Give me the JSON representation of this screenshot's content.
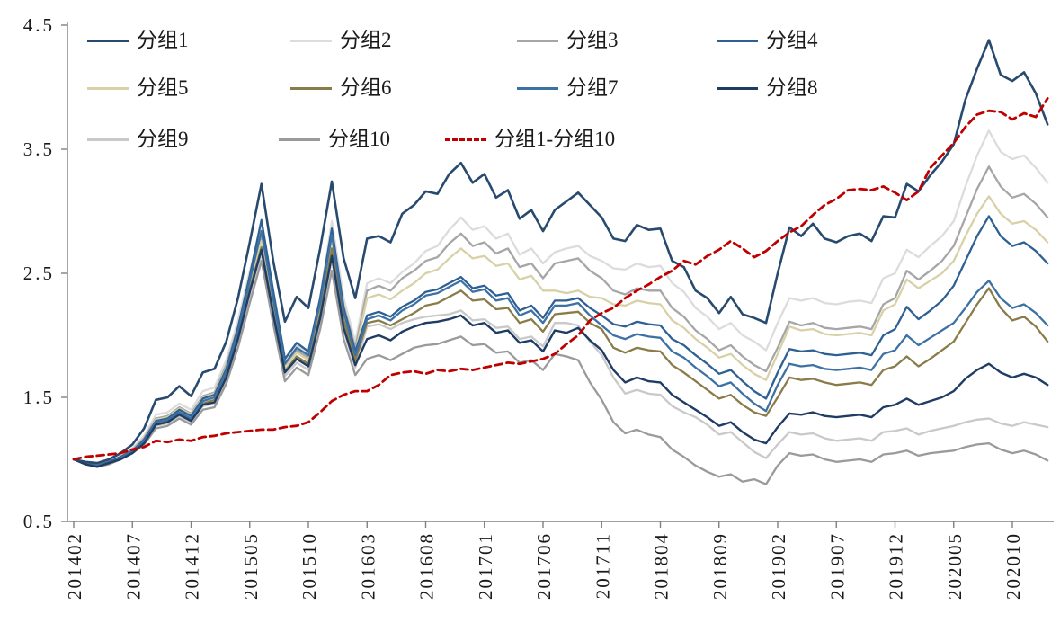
{
  "chart_data": {
    "type": "line",
    "title": "",
    "grid": false,
    "legend_position": "top-left-inside",
    "x_axis": {
      "start_label": "201402",
      "tick_labels": [
        "201402",
        "201407",
        "201412",
        "201505",
        "201510",
        "201603",
        "201608",
        "201701",
        "201706",
        "201711",
        "201804",
        "201809",
        "201902",
        "201907",
        "201912",
        "202005",
        "202010"
      ],
      "tick_months": [
        0,
        5,
        10,
        15,
        20,
        25,
        30,
        35,
        40,
        45,
        50,
        55,
        60,
        65,
        70,
        75,
        80
      ],
      "label_rotation_deg": -90
    },
    "y_axis": {
      "min": 0.5,
      "max": 4.5,
      "tick_labels": [
        "0.5",
        "1.5",
        "2.5",
        "3.5",
        "4.5"
      ],
      "tick_values": [
        0.5,
        1.5,
        2.5,
        3.5,
        4.5
      ]
    },
    "n_points": 84,
    "axis_color": "#808080",
    "series": [
      {
        "name": "分组1",
        "color": "#274A6E",
        "dashed": false,
        "width": 2.6,
        "values": [
          1.0,
          0.98,
          0.97,
          1.0,
          1.05,
          1.12,
          1.25,
          1.48,
          1.5,
          1.59,
          1.51,
          1.7,
          1.73,
          1.95,
          2.3,
          2.75,
          3.22,
          2.6,
          2.11,
          2.31,
          2.22,
          2.7,
          3.24,
          2.62,
          2.3,
          2.78,
          2.8,
          2.75,
          2.98,
          3.05,
          3.16,
          3.14,
          3.3,
          3.39,
          3.23,
          3.3,
          3.11,
          3.17,
          2.94,
          3.01,
          2.84,
          3.01,
          3.08,
          3.15,
          3.05,
          2.95,
          2.78,
          2.76,
          2.89,
          2.85,
          2.86,
          2.6,
          2.55,
          2.36,
          2.3,
          2.18,
          2.31,
          2.17,
          2.14,
          2.1,
          2.5,
          2.87,
          2.8,
          2.9,
          2.78,
          2.75,
          2.8,
          2.82,
          2.76,
          2.96,
          2.95,
          3.22,
          3.16,
          3.29,
          3.4,
          3.54,
          3.9,
          4.15,
          4.38,
          4.1,
          4.05,
          4.12,
          3.95,
          3.7
        ]
      },
      {
        "name": "分组2",
        "color": "#DCDCDC",
        "dashed": false,
        "width": 2.3,
        "values": [
          1.0,
          0.98,
          0.96,
          0.99,
          1.03,
          1.09,
          1.19,
          1.36,
          1.38,
          1.45,
          1.4,
          1.55,
          1.58,
          1.8,
          2.12,
          2.52,
          2.88,
          2.32,
          1.79,
          1.92,
          1.86,
          2.3,
          2.92,
          2.3,
          1.95,
          2.42,
          2.46,
          2.42,
          2.51,
          2.58,
          2.68,
          2.72,
          2.85,
          2.95,
          2.85,
          2.88,
          2.78,
          2.82,
          2.65,
          2.7,
          2.58,
          2.67,
          2.7,
          2.72,
          2.64,
          2.6,
          2.54,
          2.53,
          2.58,
          2.55,
          2.56,
          2.42,
          2.35,
          2.22,
          2.15,
          2.05,
          2.1,
          2.0,
          1.95,
          1.88,
          2.1,
          2.3,
          2.28,
          2.3,
          2.26,
          2.25,
          2.27,
          2.28,
          2.26,
          2.46,
          2.5,
          2.69,
          2.63,
          2.72,
          2.8,
          2.92,
          3.2,
          3.45,
          3.65,
          3.48,
          3.42,
          3.45,
          3.35,
          3.23
        ]
      },
      {
        "name": "分组3",
        "color": "#A6A6A6",
        "dashed": false,
        "width": 2.3,
        "values": [
          1.0,
          0.97,
          0.96,
          0.98,
          1.02,
          1.08,
          1.17,
          1.33,
          1.35,
          1.42,
          1.37,
          1.51,
          1.54,
          1.76,
          2.07,
          2.46,
          2.8,
          2.26,
          1.76,
          1.88,
          1.82,
          2.24,
          2.83,
          2.24,
          1.9,
          2.36,
          2.4,
          2.36,
          2.46,
          2.52,
          2.6,
          2.63,
          2.74,
          2.82,
          2.72,
          2.75,
          2.66,
          2.7,
          2.55,
          2.58,
          2.46,
          2.58,
          2.6,
          2.62,
          2.52,
          2.46,
          2.36,
          2.33,
          2.38,
          2.36,
          2.36,
          2.22,
          2.15,
          2.04,
          1.97,
          1.88,
          1.92,
          1.83,
          1.76,
          1.71,
          1.9,
          2.11,
          2.08,
          2.1,
          2.06,
          2.05,
          2.06,
          2.07,
          2.05,
          2.25,
          2.3,
          2.52,
          2.45,
          2.52,
          2.6,
          2.72,
          2.95,
          3.18,
          3.36,
          3.2,
          3.11,
          3.14,
          3.06,
          2.95
        ]
      },
      {
        "name": "分组4",
        "color": "#2F6093",
        "dashed": false,
        "width": 2.3,
        "values": [
          1.0,
          0.97,
          0.95,
          0.98,
          1.02,
          1.07,
          1.16,
          1.31,
          1.33,
          1.4,
          1.35,
          1.49,
          1.52,
          1.73,
          2.06,
          2.48,
          2.93,
          2.36,
          1.81,
          1.94,
          1.87,
          2.3,
          2.86,
          2.22,
          1.87,
          2.16,
          2.19,
          2.15,
          2.23,
          2.28,
          2.35,
          2.37,
          2.42,
          2.47,
          2.38,
          2.4,
          2.32,
          2.34,
          2.2,
          2.24,
          2.14,
          2.28,
          2.28,
          2.3,
          2.22,
          2.16,
          2.09,
          2.07,
          2.11,
          2.09,
          2.08,
          1.97,
          1.92,
          1.84,
          1.77,
          1.69,
          1.72,
          1.63,
          1.55,
          1.49,
          1.7,
          1.89,
          1.87,
          1.88,
          1.85,
          1.84,
          1.85,
          1.86,
          1.84,
          2.0,
          2.05,
          2.23,
          2.13,
          2.2,
          2.28,
          2.4,
          2.6,
          2.8,
          2.96,
          2.8,
          2.72,
          2.75,
          2.68,
          2.58
        ]
      },
      {
        "name": "分组5",
        "color": "#D8D1A7",
        "dashed": false,
        "width": 2.3,
        "values": [
          1.0,
          0.97,
          0.95,
          0.98,
          1.02,
          1.08,
          1.16,
          1.32,
          1.34,
          1.41,
          1.36,
          1.5,
          1.53,
          1.74,
          2.05,
          2.43,
          2.76,
          2.23,
          1.74,
          1.86,
          1.8,
          2.21,
          2.77,
          2.18,
          1.86,
          2.3,
          2.33,
          2.29,
          2.36,
          2.42,
          2.5,
          2.53,
          2.62,
          2.7,
          2.62,
          2.64,
          2.56,
          2.58,
          2.45,
          2.48,
          2.36,
          2.36,
          2.34,
          2.36,
          2.31,
          2.3,
          2.25,
          2.24,
          2.28,
          2.26,
          2.25,
          2.12,
          2.06,
          1.97,
          1.9,
          1.82,
          1.85,
          1.76,
          1.69,
          1.64,
          1.85,
          2.07,
          2.04,
          2.05,
          2.01,
          2.0,
          2.01,
          2.02,
          2.0,
          2.2,
          2.25,
          2.45,
          2.38,
          2.44,
          2.5,
          2.6,
          2.8,
          2.98,
          3.12,
          2.98,
          2.9,
          2.92,
          2.85,
          2.75
        ]
      },
      {
        "name": "分组6",
        "color": "#8A7C49",
        "dashed": false,
        "width": 2.3,
        "values": [
          1.0,
          0.96,
          0.95,
          0.97,
          1.01,
          1.06,
          1.14,
          1.29,
          1.31,
          1.37,
          1.32,
          1.45,
          1.48,
          1.68,
          1.99,
          2.37,
          2.71,
          2.19,
          1.71,
          1.83,
          1.77,
          2.17,
          2.7,
          2.12,
          1.8,
          2.1,
          2.12,
          2.08,
          2.13,
          2.18,
          2.24,
          2.26,
          2.31,
          2.36,
          2.28,
          2.29,
          2.21,
          2.22,
          2.1,
          2.13,
          2.03,
          2.17,
          2.18,
          2.19,
          2.1,
          2.05,
          1.9,
          1.86,
          1.9,
          1.88,
          1.87,
          1.76,
          1.7,
          1.63,
          1.56,
          1.49,
          1.52,
          1.44,
          1.38,
          1.35,
          1.5,
          1.66,
          1.64,
          1.65,
          1.62,
          1.6,
          1.61,
          1.62,
          1.6,
          1.72,
          1.75,
          1.83,
          1.75,
          1.81,
          1.88,
          1.95,
          2.1,
          2.25,
          2.38,
          2.22,
          2.12,
          2.15,
          2.07,
          1.95
        ]
      },
      {
        "name": "分组7",
        "color": "#3C71A4",
        "dashed": false,
        "width": 2.3,
        "values": [
          1.0,
          0.97,
          0.95,
          0.97,
          1.01,
          1.07,
          1.15,
          1.3,
          1.32,
          1.38,
          1.33,
          1.47,
          1.5,
          1.71,
          2.03,
          2.44,
          2.84,
          2.29,
          1.77,
          1.9,
          1.84,
          2.26,
          2.81,
          2.19,
          1.84,
          2.13,
          2.16,
          2.12,
          2.2,
          2.25,
          2.32,
          2.34,
          2.39,
          2.44,
          2.35,
          2.37,
          2.28,
          2.3,
          2.16,
          2.2,
          2.1,
          2.24,
          2.24,
          2.26,
          2.16,
          2.08,
          2.0,
          1.97,
          2.01,
          1.99,
          1.98,
          1.87,
          1.82,
          1.74,
          1.67,
          1.59,
          1.62,
          1.53,
          1.45,
          1.39,
          1.6,
          1.77,
          1.75,
          1.76,
          1.73,
          1.72,
          1.73,
          1.74,
          1.72,
          1.85,
          1.88,
          2.0,
          1.92,
          1.98,
          2.04,
          2.1,
          2.22,
          2.35,
          2.44,
          2.3,
          2.22,
          2.25,
          2.18,
          2.08
        ]
      },
      {
        "name": "分组8",
        "color": "#1F3C64",
        "dashed": false,
        "width": 2.4,
        "values": [
          1.0,
          0.96,
          0.94,
          0.97,
          1.0,
          1.05,
          1.13,
          1.28,
          1.3,
          1.36,
          1.31,
          1.44,
          1.46,
          1.66,
          1.97,
          2.35,
          2.69,
          2.17,
          1.7,
          1.81,
          1.75,
          2.14,
          2.64,
          2.06,
          1.76,
          1.97,
          2.0,
          1.96,
          2.03,
          2.07,
          2.1,
          2.11,
          2.13,
          2.16,
          2.08,
          2.1,
          2.02,
          2.04,
          1.94,
          1.96,
          1.87,
          2.04,
          2.02,
          2.06,
          1.96,
          1.88,
          1.72,
          1.62,
          1.66,
          1.63,
          1.62,
          1.52,
          1.46,
          1.4,
          1.34,
          1.27,
          1.3,
          1.22,
          1.16,
          1.13,
          1.26,
          1.37,
          1.36,
          1.38,
          1.35,
          1.34,
          1.35,
          1.36,
          1.34,
          1.42,
          1.44,
          1.49,
          1.44,
          1.47,
          1.5,
          1.55,
          1.65,
          1.72,
          1.77,
          1.7,
          1.66,
          1.69,
          1.66,
          1.6
        ]
      },
      {
        "name": "分组9",
        "color": "#C9C9C9",
        "dashed": false,
        "width": 2.3,
        "values": [
          1.0,
          0.96,
          0.94,
          0.97,
          1.0,
          1.06,
          1.13,
          1.27,
          1.29,
          1.35,
          1.3,
          1.43,
          1.45,
          1.65,
          1.95,
          2.32,
          2.66,
          2.14,
          1.67,
          1.78,
          1.72,
          2.11,
          2.61,
          2.04,
          1.74,
          2.07,
          2.09,
          2.05,
          2.1,
          2.13,
          2.15,
          2.16,
          2.17,
          2.2,
          2.12,
          2.13,
          2.06,
          2.07,
          1.97,
          1.99,
          1.91,
          2.1,
          2.1,
          2.08,
          1.95,
          1.84,
          1.66,
          1.53,
          1.56,
          1.53,
          1.52,
          1.43,
          1.38,
          1.34,
          1.28,
          1.2,
          1.22,
          1.14,
          1.06,
          1.01,
          1.12,
          1.22,
          1.2,
          1.21,
          1.17,
          1.15,
          1.16,
          1.17,
          1.15,
          1.22,
          1.23,
          1.25,
          1.2,
          1.23,
          1.25,
          1.27,
          1.3,
          1.32,
          1.33,
          1.29,
          1.27,
          1.3,
          1.28,
          1.26
        ]
      },
      {
        "name": "分组10",
        "color": "#9A9A9A",
        "dashed": false,
        "width": 2.3,
        "values": [
          1.0,
          0.96,
          0.94,
          0.96,
          1.0,
          1.05,
          1.12,
          1.25,
          1.27,
          1.33,
          1.28,
          1.4,
          1.42,
          1.61,
          1.9,
          2.26,
          2.6,
          2.09,
          1.63,
          1.74,
          1.68,
          2.05,
          2.52,
          1.97,
          1.68,
          1.81,
          1.84,
          1.8,
          1.85,
          1.9,
          1.92,
          1.93,
          1.96,
          1.99,
          1.92,
          1.93,
          1.86,
          1.87,
          1.78,
          1.8,
          1.72,
          1.85,
          1.83,
          1.8,
          1.62,
          1.48,
          1.3,
          1.21,
          1.24,
          1.2,
          1.18,
          1.08,
          1.02,
          0.95,
          0.9,
          0.86,
          0.88,
          0.82,
          0.84,
          0.8,
          0.95,
          1.05,
          1.03,
          1.04,
          1.0,
          0.98,
          0.99,
          1.0,
          0.98,
          1.04,
          1.05,
          1.07,
          1.03,
          1.05,
          1.06,
          1.07,
          1.1,
          1.12,
          1.13,
          1.08,
          1.05,
          1.07,
          1.04,
          0.99
        ]
      },
      {
        "name": "分组1-分组10",
        "color": "#C00000",
        "dashed": true,
        "width": 2.8,
        "values": [
          1.0,
          1.02,
          1.03,
          1.04,
          1.05,
          1.08,
          1.1,
          1.15,
          1.14,
          1.16,
          1.15,
          1.18,
          1.19,
          1.21,
          1.22,
          1.23,
          1.24,
          1.24,
          1.26,
          1.27,
          1.3,
          1.38,
          1.47,
          1.52,
          1.55,
          1.55,
          1.6,
          1.68,
          1.7,
          1.71,
          1.69,
          1.72,
          1.71,
          1.73,
          1.72,
          1.74,
          1.76,
          1.78,
          1.77,
          1.79,
          1.81,
          1.85,
          1.93,
          2.0,
          2.12,
          2.18,
          2.22,
          2.3,
          2.36,
          2.41,
          2.47,
          2.52,
          2.6,
          2.57,
          2.64,
          2.69,
          2.76,
          2.7,
          2.63,
          2.68,
          2.76,
          2.83,
          2.88,
          2.97,
          3.05,
          3.1,
          3.17,
          3.18,
          3.17,
          3.2,
          3.15,
          3.09,
          3.16,
          3.35,
          3.45,
          3.55,
          3.68,
          3.78,
          3.81,
          3.8,
          3.74,
          3.79,
          3.76,
          3.91
        ]
      }
    ]
  }
}
